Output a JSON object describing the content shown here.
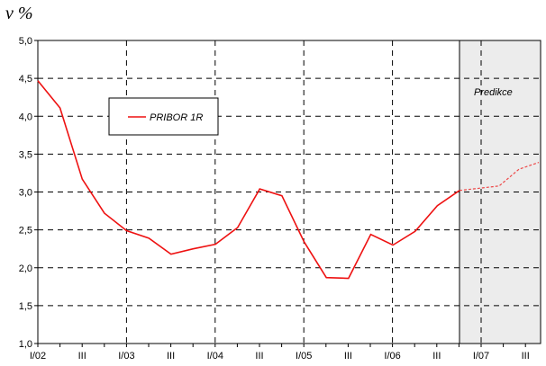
{
  "unit_label": "v %",
  "colors": {
    "series": "#ee1111",
    "forecast_shade": "#ececec",
    "grid": "#000000"
  },
  "chart_data": {
    "type": "line",
    "title": "",
    "xlabel": "",
    "ylabel": "v %",
    "ylim": [
      1.0,
      5.0
    ],
    "y_ticks": [
      "1,0",
      "1,5",
      "2,0",
      "2,5",
      "3,0",
      "3,5",
      "4,0",
      "4,5",
      "5,0"
    ],
    "y_tick_values": [
      1.0,
      1.5,
      2.0,
      2.5,
      3.0,
      3.5,
      4.0,
      4.5,
      5.0
    ],
    "x_tick_labels": [
      "I/02",
      "III",
      "I/03",
      "III",
      "I/04",
      "III",
      "I/05",
      "III",
      "I/06",
      "III",
      "I/07",
      "III"
    ],
    "grid": true,
    "legend_position": "top-left",
    "series": [
      {
        "name": "PRIBOR 1R",
        "x": [
          "I/02",
          "II/02",
          "III/02",
          "IV/02",
          "I/03",
          "II/03",
          "III/03",
          "IV/03",
          "I/04",
          "II/04",
          "III/04",
          "IV/04",
          "I/05",
          "II/05",
          "III/05",
          "IV/05",
          "I/06",
          "II/06",
          "III/06",
          "IV/06"
        ],
        "values": [
          4.47,
          4.11,
          3.17,
          2.72,
          2.49,
          2.39,
          2.18,
          2.25,
          2.31,
          2.53,
          3.04,
          2.95,
          2.34,
          1.87,
          1.86,
          2.44,
          2.3,
          2.48,
          2.82,
          3.02
        ]
      },
      {
        "name": "Predikce",
        "x": [
          "IV/06",
          "I/07",
          "II/07",
          "III/07",
          "IV/07"
        ],
        "values": [
          3.02,
          3.05,
          3.08,
          3.3,
          3.39
        ]
      }
    ],
    "annotations": [
      "Predikce"
    ]
  }
}
